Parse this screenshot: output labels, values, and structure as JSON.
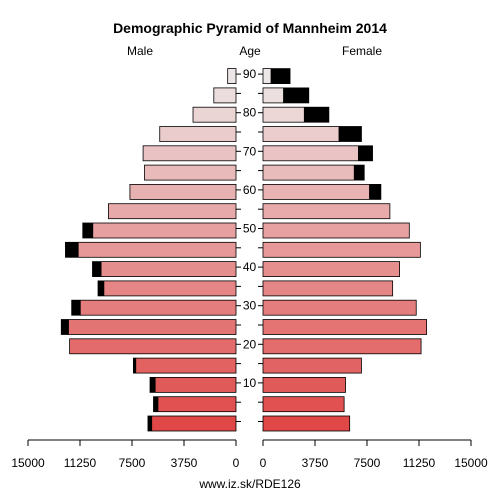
{
  "chart_data": {
    "type": "bar",
    "title": "Demographic Pyramid of Mannheim 2014",
    "left_label": "Male",
    "center_label": "Age",
    "right_label": "Female",
    "footer": "www.iz.sk/RDE126",
    "x_ticks": [
      "15000",
      "11250",
      "7500",
      "3750",
      "0",
      "0",
      "3750",
      "7500",
      "11250",
      "15000"
    ],
    "xlim": [
      0,
      15000
    ],
    "age_ticks": [
      10,
      20,
      30,
      40,
      50,
      60,
      70,
      80,
      90
    ],
    "age_groups": [
      "0-4",
      "5-9",
      "10-14",
      "15-19",
      "20-24",
      "25-29",
      "30-34",
      "35-39",
      "40-44",
      "45-49",
      "50-54",
      "55-59",
      "60-64",
      "65-69",
      "70-74",
      "75-79",
      "80-84",
      "85-89",
      "90+"
    ],
    "series": [
      {
        "name": "Male",
        "values": [
          6350,
          5950,
          6200,
          7400,
          12000,
          12600,
          11850,
          9950,
          10350,
          12300,
          11050,
          9200,
          7650,
          6600,
          6700,
          5500,
          3100,
          1600,
          600
        ],
        "dark_values": [
          300,
          350,
          400,
          200,
          0,
          550,
          650,
          450,
          650,
          950,
          750,
          0,
          0,
          0,
          0,
          0,
          0,
          0,
          0
        ]
      },
      {
        "name": "Female",
        "values": [
          6250,
          5850,
          5950,
          7100,
          11400,
          11800,
          11050,
          9350,
          9850,
          11350,
          10550,
          9150,
          8500,
          7300,
          7900,
          7100,
          4750,
          3300,
          1950
        ],
        "dark_values": [
          0,
          0,
          0,
          0,
          0,
          0,
          0,
          0,
          0,
          0,
          0,
          0,
          850,
          750,
          1050,
          1650,
          1800,
          1850,
          1400
        ]
      }
    ]
  }
}
